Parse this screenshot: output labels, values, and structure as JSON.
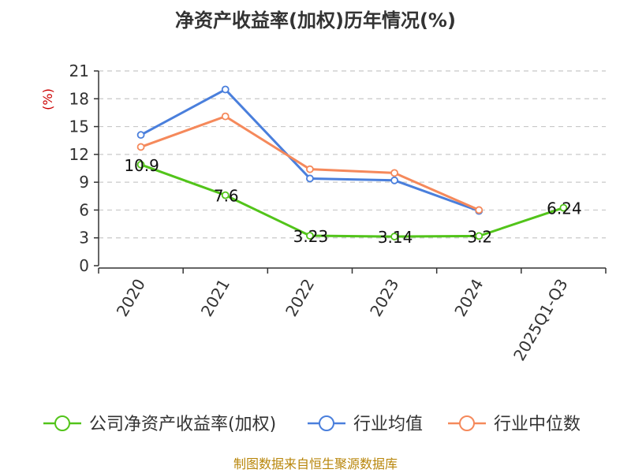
{
  "chart_data": {
    "type": "line",
    "title": "净资产收益率(加权)历年情况(%)",
    "unit_label": "(%)",
    "categories": [
      "2020",
      "2021",
      "2022",
      "2023",
      "2024",
      "2025Q1-Q3"
    ],
    "ylim": [
      0,
      21
    ],
    "yticks": [
      0,
      3,
      6,
      9,
      12,
      15,
      18,
      21
    ],
    "grid": true,
    "legend_position": "bottom",
    "series": [
      {
        "name": "公司净资产收益率(加权)",
        "color": "#52c41a",
        "values": [
          10.9,
          7.6,
          3.23,
          3.14,
          3.2,
          6.24
        ],
        "labels": [
          "10.9",
          "7.6",
          "3.23",
          "3.14",
          "3.2",
          "6.24"
        ]
      },
      {
        "name": "行业均值",
        "color": "#4a7fdc",
        "values": [
          14.1,
          19.0,
          9.4,
          9.2,
          5.9,
          null
        ]
      },
      {
        "name": "行业中位数",
        "color": "#f5895b",
        "values": [
          12.8,
          16.1,
          10.4,
          10.0,
          6.0,
          null
        ]
      }
    ]
  },
  "footer": {
    "source": "制图数据来自恒生聚源数据库"
  }
}
